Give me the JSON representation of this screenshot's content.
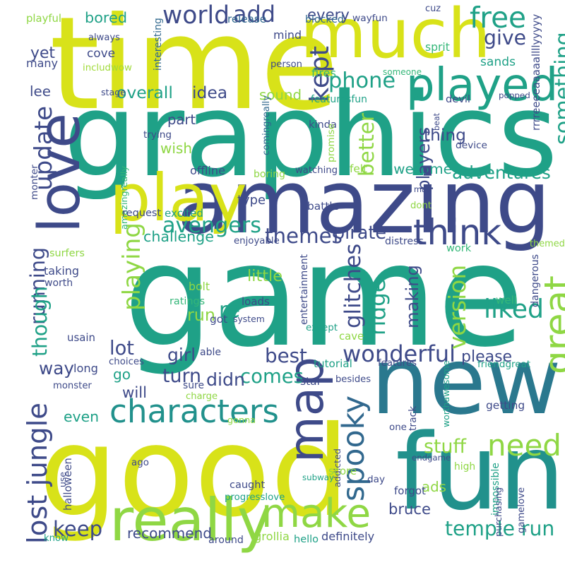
{
  "palette": {
    "yellow": "#d8e219",
    "lime": "#8fd744",
    "green": "#35b779",
    "teal": "#1fa187",
    "cyan": "#21918c",
    "blue": "#2a788e",
    "slate": "#31688e",
    "indigo": "#3e4a89",
    "purple": "#482475",
    "deep": "#440154",
    "light": "#a0da39"
  },
  "words": [
    {
      "id": "game",
      "text": "game",
      "c": "teal"
    },
    {
      "id": "graphics",
      "text": "graphics",
      "c": "teal"
    },
    {
      "id": "time",
      "text": "time",
      "c": "yellow"
    },
    {
      "id": "love",
      "text": "love",
      "c": "indigo"
    },
    {
      "id": "good",
      "text": "good",
      "c": "yellow"
    },
    {
      "id": "new",
      "text": "new",
      "c": "blue"
    },
    {
      "id": "fun",
      "text": "fun",
      "c": "cyan"
    },
    {
      "id": "much",
      "text": "much",
      "c": "yellow"
    },
    {
      "id": "amazing",
      "text": "amazing",
      "c": "indigo"
    },
    {
      "id": "play",
      "text": "play",
      "c": "yellow"
    },
    {
      "id": "really",
      "text": "really",
      "c": "lime"
    },
    {
      "id": "make",
      "text": "make",
      "c": "lime"
    },
    {
      "id": "map",
      "text": "map",
      "c": "indigo"
    },
    {
      "id": "played",
      "text": "played",
      "c": "teal"
    },
    {
      "id": "characters",
      "text": "characters",
      "c": "cyan"
    },
    {
      "id": "need",
      "text": "need",
      "c": "lime"
    },
    {
      "id": "spooky",
      "text": "spooky",
      "c": "slate"
    },
    {
      "id": "think",
      "text": "think",
      "c": "indigo"
    },
    {
      "id": "playing",
      "text": "playing",
      "c": "lime"
    },
    {
      "id": "avengers",
      "text": "avengers",
      "c": "teal"
    },
    {
      "id": "wonderful",
      "text": "wonderful",
      "c": "indigo"
    },
    {
      "id": "liked",
      "text": "liked",
      "c": "teal"
    },
    {
      "id": "world",
      "text": "world",
      "c": "indigo"
    },
    {
      "id": "free",
      "text": "free",
      "c": "teal"
    },
    {
      "id": "add",
      "text": "add",
      "c": "indigo"
    },
    {
      "id": "phone",
      "text": "phone",
      "c": "teal"
    },
    {
      "id": "give",
      "text": "give",
      "c": "indigo"
    },
    {
      "id": "best",
      "text": "best",
      "c": "indigo"
    },
    {
      "id": "keep",
      "text": "keep",
      "c": "indigo"
    },
    {
      "id": "lost_jungle",
      "text": "lost jungle",
      "c": "indigo"
    },
    {
      "id": "temple_run",
      "text": "temple run",
      "c": "teal"
    },
    {
      "id": "themes",
      "text": "themes",
      "c": "indigo"
    },
    {
      "id": "bored",
      "text": "bored",
      "c": "teal"
    },
    {
      "id": "running",
      "text": "running",
      "c": "indigo"
    },
    {
      "id": "update",
      "text": "update",
      "c": "indigo"
    },
    {
      "id": "better",
      "text": "better",
      "c": "lime"
    },
    {
      "id": "ridge",
      "text": "ridge",
      "c": "teal"
    },
    {
      "id": "glitches",
      "text": "glitches",
      "c": "indigo"
    },
    {
      "id": "great",
      "text": "great",
      "c": "lime"
    },
    {
      "id": "comes",
      "text": "comes",
      "c": "teal"
    },
    {
      "id": "way",
      "text": "way",
      "c": "indigo"
    },
    {
      "id": "stuff",
      "text": "stuff",
      "c": "lime"
    },
    {
      "id": "recommend",
      "text": "recommend",
      "c": "indigo"
    },
    {
      "id": "bruce",
      "text": "bruce",
      "c": "indigo"
    },
    {
      "id": "awesome",
      "text": "awesome",
      "c": "teal"
    },
    {
      "id": "overall",
      "text": "overall",
      "c": "teal"
    },
    {
      "id": "idea",
      "text": "idea",
      "c": "indigo"
    },
    {
      "id": "sound",
      "text": "sound",
      "c": "lime"
    },
    {
      "id": "kept",
      "text": "kept",
      "c": "indigo"
    },
    {
      "id": "players",
      "text": "players",
      "c": "indigo"
    },
    {
      "id": "something",
      "text": "something",
      "c": "teal"
    },
    {
      "id": "thing",
      "text": "thing",
      "c": "indigo"
    },
    {
      "id": "adventures",
      "text": "adventures",
      "c": "teal"
    },
    {
      "id": "wish",
      "text": "wish",
      "c": "lime"
    },
    {
      "id": "part",
      "text": "part",
      "c": "indigo"
    },
    {
      "id": "pirate",
      "text": "pirate",
      "c": "indigo"
    },
    {
      "id": "challenge",
      "text": "challenge",
      "c": "teal"
    },
    {
      "id": "type",
      "text": "type",
      "c": "indigo"
    },
    {
      "id": "re",
      "text": "re",
      "c": "teal"
    },
    {
      "id": "run",
      "text": "run",
      "c": "lime"
    },
    {
      "id": "little",
      "text": "little",
      "c": "lime"
    },
    {
      "id": "though",
      "text": "though",
      "c": "teal"
    },
    {
      "id": "lot",
      "text": "lot",
      "c": "indigo"
    },
    {
      "id": "girl",
      "text": "girl",
      "c": "indigo"
    },
    {
      "id": "go",
      "text": "go",
      "c": "teal"
    },
    {
      "id": "will",
      "text": "will",
      "c": "indigo"
    },
    {
      "id": "turn",
      "text": "turn",
      "c": "indigo"
    },
    {
      "id": "didn",
      "text": "didn",
      "c": "indigo"
    },
    {
      "id": "even",
      "text": "even",
      "c": "teal"
    },
    {
      "id": "please",
      "text": "please",
      "c": "indigo"
    },
    {
      "id": "making",
      "text": "making",
      "c": "indigo"
    },
    {
      "id": "version",
      "text": "version",
      "c": "lime"
    },
    {
      "id": "ads",
      "text": "ads",
      "c": "lime"
    },
    {
      "id": "sands",
      "text": "sands",
      "c": "teal"
    },
    {
      "id": "mind",
      "text": "mind",
      "c": "indigo"
    },
    {
      "id": "every",
      "text": "every",
      "c": "indigo"
    },
    {
      "id": "yet",
      "text": "yet",
      "c": "indigo"
    },
    {
      "id": "cove",
      "text": "cove",
      "c": "indigo"
    },
    {
      "id": "many",
      "text": "many",
      "c": "indigo"
    },
    {
      "id": "lee",
      "text": "lee",
      "c": "indigo"
    },
    {
      "id": "playful",
      "text": "playful",
      "c": "lime"
    },
    {
      "id": "always",
      "text": "always",
      "c": "indigo"
    },
    {
      "id": "includwow",
      "text": "includwow",
      "c": "light"
    },
    {
      "id": "interesting",
      "text": "interesting",
      "c": "slate"
    },
    {
      "id": "release",
      "text": "release",
      "c": "slate"
    },
    {
      "id": "blocked",
      "text": "blocked",
      "c": "slate"
    },
    {
      "id": "wayfun",
      "text": "wayfun",
      "c": "indigo"
    },
    {
      "id": "cuz",
      "text": "cuz",
      "c": "indigo"
    },
    {
      "id": "sprit",
      "text": "sprit",
      "c": "green"
    },
    {
      "id": "person",
      "text": "person",
      "c": "indigo"
    },
    {
      "id": "fires",
      "text": "fires",
      "c": "green"
    },
    {
      "id": "someone",
      "text": "someone",
      "c": "green"
    },
    {
      "id": "stage",
      "text": "stage",
      "c": "indigo"
    },
    {
      "id": "featuresfun",
      "text": "featuresfun",
      "c": "teal"
    },
    {
      "id": "devil",
      "text": "devil",
      "c": "indigo"
    },
    {
      "id": "popped",
      "text": "popped",
      "c": "indigo"
    },
    {
      "id": "comingreally",
      "text": "comingreally",
      "c": "slate"
    },
    {
      "id": "kinda",
      "text": "kinda",
      "c": "indigo"
    },
    {
      "id": "beat",
      "text": "beat",
      "c": "indigo"
    },
    {
      "id": "rrrr",
      "text": "rrrreeeeaaaaallllyyyyy",
      "c": "indigo"
    },
    {
      "id": "trying",
      "text": "trying",
      "c": "indigo"
    },
    {
      "id": "device",
      "text": "device",
      "c": "indigo"
    },
    {
      "id": "promise",
      "text": "promise",
      "c": "lime"
    },
    {
      "id": "amazingreally",
      "text": "amazingreally",
      "c": "green"
    },
    {
      "id": "offline",
      "text": "offline",
      "c": "indigo"
    },
    {
      "id": "boring",
      "text": "boring",
      "c": "lime"
    },
    {
      "id": "watching",
      "text": "watching",
      "c": "indigo"
    },
    {
      "id": "felt",
      "text": "felt",
      "c": "lime"
    },
    {
      "id": "monter",
      "text": "monter",
      "c": "indigo"
    },
    {
      "id": "mad",
      "text": "mad",
      "c": "indigo"
    },
    {
      "id": "request",
      "text": "request",
      "c": "indigo"
    },
    {
      "id": "excited",
      "text": "excited",
      "c": "teal"
    },
    {
      "id": "battle",
      "text": "battle",
      "c": "indigo"
    },
    {
      "id": "dont",
      "text": "dont",
      "c": "lime"
    },
    {
      "id": "enjoyable",
      "text": "enjoyable",
      "c": "indigo"
    },
    {
      "id": "distress",
      "text": "distress",
      "c": "indigo"
    },
    {
      "id": "work",
      "text": "work",
      "c": "green"
    },
    {
      "id": "themed",
      "text": "themed",
      "c": "lime"
    },
    {
      "id": "dangerous",
      "text": "dangerous",
      "c": "indigo"
    },
    {
      "id": "surfers",
      "text": "surfers",
      "c": "lime"
    },
    {
      "id": "entertainment",
      "text": "entertainment",
      "c": "indigo"
    },
    {
      "id": "taking",
      "text": "taking",
      "c": "indigo"
    },
    {
      "id": "worth",
      "text": "worth",
      "c": "indigo"
    },
    {
      "id": "bolt",
      "text": "bolt",
      "c": "lime"
    },
    {
      "id": "loads",
      "text": "loads",
      "c": "indigo"
    },
    {
      "id": "well",
      "text": "well",
      "c": "green"
    },
    {
      "id": "ratings",
      "text": "ratings",
      "c": "green"
    },
    {
      "id": "got",
      "text": "got",
      "c": "indigo"
    },
    {
      "id": "system",
      "text": "system",
      "c": "indigo"
    },
    {
      "id": "except",
      "text": "except",
      "c": "teal"
    },
    {
      "id": "cave",
      "text": "cave",
      "c": "lime"
    },
    {
      "id": "usain",
      "text": "usain",
      "c": "indigo"
    },
    {
      "id": "able",
      "text": "able",
      "c": "indigo"
    },
    {
      "id": "long",
      "text": "long",
      "c": "indigo"
    },
    {
      "id": "choices",
      "text": "choices",
      "c": "indigo"
    },
    {
      "id": "tutorial",
      "text": "tutorial",
      "c": "teal"
    },
    {
      "id": "features",
      "text": "features",
      "c": "indigo"
    },
    {
      "id": "friendgreat",
      "text": "friendgreat",
      "c": "teal"
    },
    {
      "id": "monster",
      "text": "monster",
      "c": "indigo"
    },
    {
      "id": "sure",
      "text": "sure",
      "c": "indigo"
    },
    {
      "id": "star",
      "text": "star",
      "c": "indigo"
    },
    {
      "id": "besides",
      "text": "besides",
      "c": "indigo"
    },
    {
      "id": "charge",
      "text": "charge",
      "c": "lime"
    },
    {
      "id": "worthawesome",
      "text": "worthawesome",
      "c": "teal"
    },
    {
      "id": "track",
      "text": "track",
      "c": "indigo"
    },
    {
      "id": "getting",
      "text": "getting",
      "c": "indigo"
    },
    {
      "id": "gonna",
      "text": "gonna",
      "c": "lime"
    },
    {
      "id": "one",
      "text": "one",
      "c": "indigo"
    },
    {
      "id": "addicted",
      "text": "addicted",
      "c": "indigo"
    },
    {
      "id": "endgame",
      "text": "endgame",
      "c": "indigo"
    },
    {
      "id": "high",
      "text": "high",
      "c": "lime"
    },
    {
      "id": "ago",
      "text": "ago",
      "c": "indigo"
    },
    {
      "id": "impossible",
      "text": "impossible",
      "c": "teal"
    },
    {
      "id": "use",
      "text": "use",
      "c": "indigo"
    },
    {
      "id": "halloween",
      "text": "halloween",
      "c": "indigo"
    },
    {
      "id": "score",
      "text": "score",
      "c": "lime"
    },
    {
      "id": "day",
      "text": "day",
      "c": "indigo"
    },
    {
      "id": "gamelove",
      "text": "gamelove",
      "c": "indigo"
    },
    {
      "id": "purchasing",
      "text": "purchasing",
      "c": "indigo"
    },
    {
      "id": "caught",
      "text": "caught",
      "c": "indigo"
    },
    {
      "id": "subway",
      "text": "subway",
      "c": "teal"
    },
    {
      "id": "progresslove",
      "text": "progresslove",
      "c": "teal"
    },
    {
      "id": "forgot",
      "text": "forgot",
      "c": "indigo"
    },
    {
      "id": "know",
      "text": "know",
      "c": "teal"
    },
    {
      "id": "around",
      "text": "around",
      "c": "indigo"
    },
    {
      "id": "grollia",
      "text": "grollia",
      "c": "lime"
    },
    {
      "id": "hello",
      "text": "hello",
      "c": "teal"
    },
    {
      "id": "definitely",
      "text": "definitely",
      "c": "indigo"
    }
  ]
}
